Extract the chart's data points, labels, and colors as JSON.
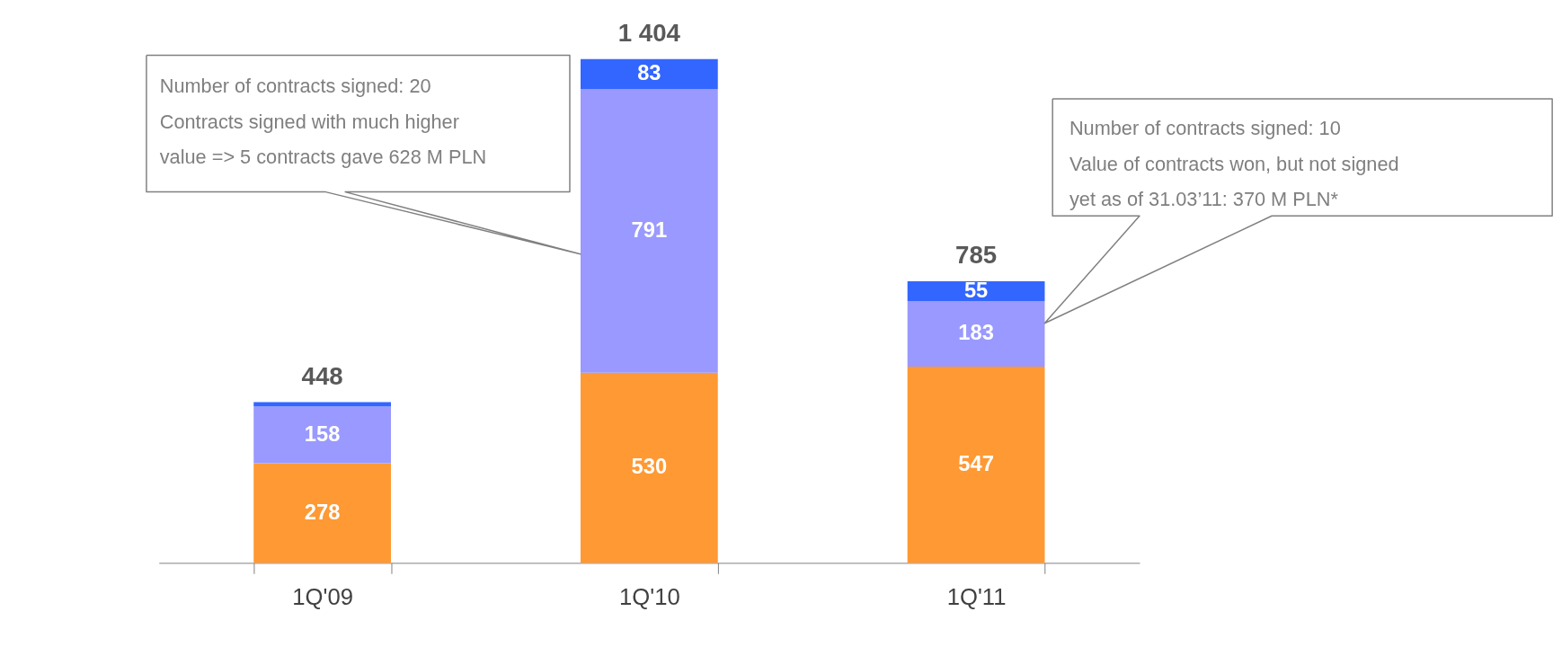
{
  "chart_data": {
    "type": "bar",
    "stacked": true,
    "categories": [
      "1Q'09",
      "1Q'10",
      "1Q'11"
    ],
    "series": [
      {
        "color": "#ff9933",
        "values": [
          278,
          530,
          547
        ],
        "value_labels": [
          "278",
          "530",
          "547"
        ]
      },
      {
        "color": "#9999ff",
        "values": [
          158,
          791,
          183
        ],
        "value_labels": [
          "158",
          "791",
          "183"
        ]
      },
      {
        "color": "#3366ff",
        "values": [
          12,
          83,
          55
        ],
        "value_labels": [
          null,
          "83",
          "55"
        ]
      }
    ],
    "totals": [
      "448",
      "1 404",
      "785"
    ],
    "annotations": [
      "Number of contracts signed: 20\nContracts signed with much higher\nvalue => 5 contracts gave 628 M PLN",
      "Number of contracts signed: 10\nValue of contracts won, but not signed\nyet as of 31.03’11: 370 M PLN*"
    ],
    "grid": false
  }
}
